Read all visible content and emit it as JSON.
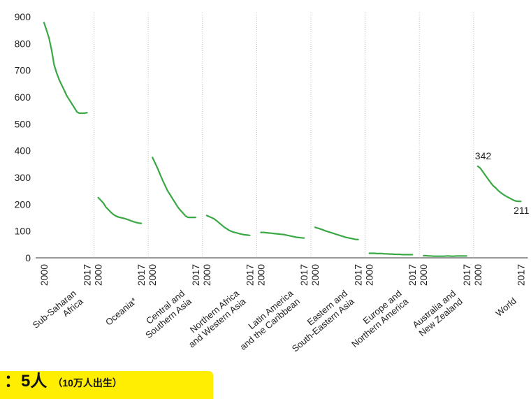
{
  "chart_data": {
    "type": "line",
    "title": "",
    "xlabel": "",
    "ylabel": "",
    "ylim": [
      0,
      900
    ],
    "yticks": [
      0,
      100,
      200,
      300,
      400,
      500,
      600,
      700,
      800,
      900
    ],
    "grid": "vertical dotted separators between panels",
    "line_color": "#3aa845",
    "x_tick_labels": [
      "2000",
      "2017"
    ],
    "series": [
      {
        "name": "Sub-Saharan\nAfrica",
        "x": [
          2000,
          2001,
          2002,
          2003,
          2004,
          2005,
          2006,
          2007,
          2008,
          2009,
          2010,
          2011,
          2012,
          2013,
          2014,
          2015,
          2016,
          2017
        ],
        "values": [
          878,
          850,
          820,
          775,
          720,
          690,
          665,
          645,
          625,
          605,
          590,
          575,
          560,
          545,
          540,
          540,
          540,
          542
        ]
      },
      {
        "name": "Oceania*",
        "x": [
          2000,
          2001,
          2002,
          2003,
          2004,
          2005,
          2006,
          2007,
          2008,
          2009,
          2010,
          2011,
          2012,
          2013,
          2014,
          2015,
          2016,
          2017
        ],
        "values": [
          225,
          215,
          205,
          190,
          180,
          170,
          162,
          156,
          152,
          150,
          148,
          145,
          142,
          138,
          135,
          132,
          130,
          129
        ]
      },
      {
        "name": "Central and\nSouthern Asia",
        "x": [
          2000,
          2001,
          2002,
          2003,
          2004,
          2005,
          2006,
          2007,
          2008,
          2009,
          2010,
          2011,
          2012,
          2013,
          2014,
          2015,
          2016,
          2017
        ],
        "values": [
          375,
          355,
          335,
          312,
          290,
          270,
          250,
          235,
          220,
          205,
          190,
          178,
          168,
          157,
          151,
          151,
          151,
          151
        ]
      },
      {
        "name": "Northern Africa\nand Western Asia",
        "x": [
          2000,
          2001,
          2002,
          2003,
          2004,
          2005,
          2006,
          2007,
          2008,
          2009,
          2010,
          2011,
          2012,
          2013,
          2014,
          2015,
          2016,
          2017
        ],
        "values": [
          158,
          154,
          150,
          145,
          138,
          130,
          122,
          114,
          108,
          102,
          98,
          95,
          93,
          90,
          88,
          86,
          85,
          84
        ]
      },
      {
        "name": "Latin America\nand the Caribbean",
        "x": [
          2000,
          2001,
          2002,
          2003,
          2004,
          2005,
          2006,
          2007,
          2008,
          2009,
          2010,
          2011,
          2012,
          2013,
          2014,
          2015,
          2016,
          2017
        ],
        "values": [
          95,
          95,
          94,
          93,
          92,
          91,
          90,
          89,
          88,
          87,
          85,
          83,
          81,
          79,
          77,
          76,
          75,
          74
        ]
      },
      {
        "name": "Eastern and\nSouth-Eastern Asia",
        "x": [
          2000,
          2001,
          2002,
          2003,
          2004,
          2005,
          2006,
          2007,
          2008,
          2009,
          2010,
          2011,
          2012,
          2013,
          2014,
          2015,
          2016,
          2017
        ],
        "values": [
          114,
          111,
          108,
          105,
          101,
          98,
          95,
          92,
          89,
          86,
          83,
          80,
          77,
          75,
          73,
          71,
          69,
          68
        ]
      },
      {
        "name": "Europe and\nNorthern America",
        "x": [
          2000,
          2001,
          2002,
          2003,
          2004,
          2005,
          2006,
          2007,
          2008,
          2009,
          2010,
          2011,
          2012,
          2013,
          2014,
          2015,
          2016,
          2017
        ],
        "values": [
          17,
          17,
          17,
          16,
          16,
          16,
          15,
          15,
          14,
          14,
          13,
          13,
          13,
          12,
          12,
          12,
          12,
          12
        ]
      },
      {
        "name": "Australia and\nNew Zealand",
        "x": [
          2000,
          2001,
          2002,
          2003,
          2004,
          2005,
          2006,
          2007,
          2008,
          2009,
          2010,
          2011,
          2012,
          2013,
          2014,
          2015,
          2016,
          2017
        ],
        "values": [
          8,
          8,
          7,
          7,
          6,
          6,
          6,
          6,
          6,
          7,
          7,
          6,
          6,
          7,
          7,
          7,
          7,
          7
        ]
      },
      {
        "name": "World",
        "x": [
          2000,
          2001,
          2002,
          2003,
          2004,
          2005,
          2006,
          2007,
          2008,
          2009,
          2010,
          2011,
          2012,
          2013,
          2014,
          2015,
          2016,
          2017
        ],
        "values": [
          342,
          335,
          322,
          308,
          295,
          282,
          270,
          262,
          252,
          244,
          237,
          231,
          226,
          221,
          216,
          212,
          211,
          211
        ]
      }
    ],
    "annotations": [
      {
        "series": "World",
        "x": 2000,
        "label": "342"
      },
      {
        "series": "World",
        "x": 2017,
        "label": "211"
      }
    ]
  },
  "overlay_banner": {
    "main_text": "：5人",
    "sub_text": "（10万人出生）"
  }
}
